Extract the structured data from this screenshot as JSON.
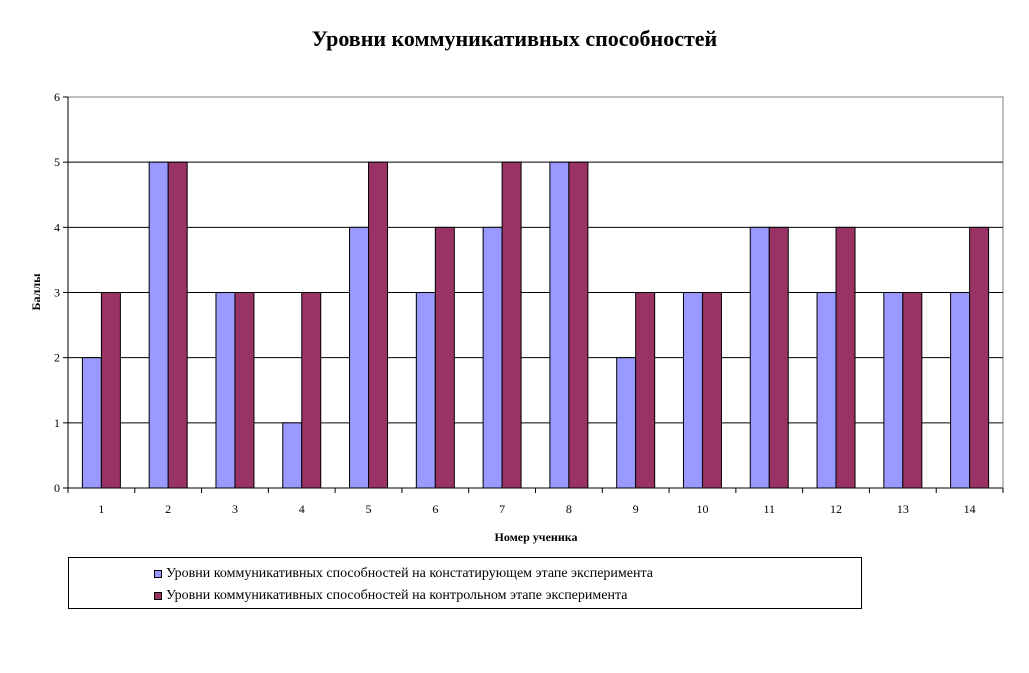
{
  "chart_data": {
    "type": "bar",
    "title": "Уровни коммуникативных способностей",
    "xlabel": "Номер ученика",
    "ylabel": "Баллы",
    "categories": [
      "1",
      "2",
      "3",
      "4",
      "5",
      "6",
      "7",
      "8",
      "9",
      "10",
      "11",
      "12",
      "13",
      "14"
    ],
    "series": [
      {
        "name": "Уровни коммуникативных способностей на констатирующем этапе эксперимента",
        "color": "#9999ff",
        "values": [
          2,
          5,
          3,
          1,
          4,
          3,
          4,
          5,
          2,
          3,
          4,
          3,
          3,
          3
        ]
      },
      {
        "name": "Уровни коммуникативных способностей на контрольном этапе эксперимента",
        "color": "#993366",
        "values": [
          3,
          5,
          3,
          3,
          5,
          4,
          5,
          5,
          3,
          3,
          4,
          4,
          3,
          4
        ]
      }
    ],
    "ylim": [
      0,
      6
    ],
    "yticks": [
      "0",
      "1",
      "2",
      "3",
      "4",
      "5",
      "6"
    ],
    "grid": true,
    "legend_position": "bottom"
  }
}
